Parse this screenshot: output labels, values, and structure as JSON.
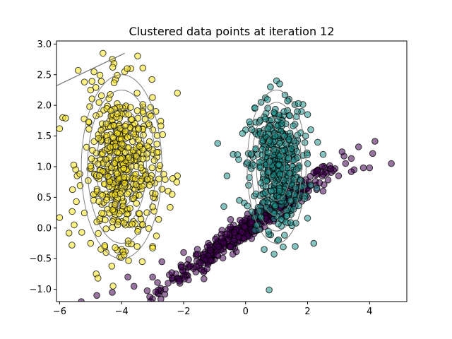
{
  "chart_data": {
    "type": "scatter",
    "title": "Clustered data points at iteration 12",
    "xlabel": "",
    "ylabel": "",
    "xlim": [
      -6.1,
      5.2
    ],
    "ylim": [
      -1.2,
      3.05
    ],
    "xticks": [
      -6,
      -4,
      -2,
      0,
      2,
      4
    ],
    "yticks": [
      -1.0,
      -0.5,
      0.0,
      0.5,
      1.0,
      1.5,
      2.0,
      2.5,
      3.0
    ],
    "grid": false,
    "legend": "none",
    "marker_edge_color": "#000000",
    "series": [
      {
        "color": "#440154",
        "center": [
          0.0,
          0.0
        ],
        "count": 520,
        "spread": "elongated along slope 0.35, x from about -5.3 to 4.7",
        "points": [
          [
            -5.3,
            -1.2
          ],
          [
            -4.8,
            -1.1
          ],
          [
            -4.3,
            -1.05
          ],
          [
            -3.8,
            -0.8
          ],
          [
            -3.6,
            -0.95
          ],
          [
            -3.0,
            -0.8
          ],
          [
            -2.7,
            -0.55
          ],
          [
            -2.5,
            -0.9
          ],
          [
            -2.0,
            -0.4
          ],
          [
            -1.6,
            -0.45
          ],
          [
            -1.2,
            -0.25
          ],
          [
            -0.8,
            -0.3
          ],
          [
            -0.4,
            -0.05
          ],
          [
            0.0,
            0.0
          ],
          [
            0.3,
            0.05
          ],
          [
            0.7,
            0.2
          ],
          [
            1.2,
            0.35
          ],
          [
            1.6,
            0.45
          ],
          [
            2.0,
            0.5
          ],
          [
            2.5,
            0.6
          ],
          [
            3.0,
            0.85
          ],
          [
            3.5,
            0.95
          ],
          [
            3.8,
            0.98
          ],
          [
            4.0,
            0.98
          ],
          [
            4.7,
            1.05
          ]
        ]
      },
      {
        "color": "#21918c",
        "center": [
          1.0,
          1.0
        ],
        "count": 520,
        "spread": "compact vertical ellipse, x from about -0.9 to 2.5, y from about -0.4 to 2.4",
        "points": [
          [
            -0.9,
            1.38
          ],
          [
            -0.7,
            0.35
          ],
          [
            -0.6,
            0.85
          ],
          [
            -0.4,
            1.2
          ],
          [
            -0.2,
            0.45
          ],
          [
            0.0,
            1.6
          ],
          [
            0.3,
            1.95
          ],
          [
            0.5,
            2.05
          ],
          [
            0.6,
            -0.35
          ],
          [
            0.8,
            2.3
          ],
          [
            1.0,
            2.4
          ],
          [
            1.1,
            2.35
          ],
          [
            1.4,
            2.1
          ],
          [
            1.6,
            -0.3
          ],
          [
            1.8,
            1.9
          ],
          [
            2.0,
            1.85
          ],
          [
            2.1,
            0.7
          ],
          [
            2.2,
            -0.25
          ],
          [
            2.5,
            1.2
          ],
          [
            2.3,
            0.65
          ]
        ]
      },
      {
        "color": "#fde725",
        "center": [
          -4.0,
          1.0
        ],
        "count": 520,
        "spread": "tall vertical ellipse, x from about -6.0 to -2.0, y from about -0.4 to 2.85",
        "points": [
          [
            -6.0,
            0.17
          ],
          [
            -6.0,
            1.62
          ],
          [
            -5.9,
            1.8
          ],
          [
            -5.6,
            -0.28
          ],
          [
            -5.4,
            2.57
          ],
          [
            -5.2,
            2.38
          ],
          [
            -5.0,
            2.25
          ],
          [
            -4.6,
            2.85
          ],
          [
            -4.3,
            2.75
          ],
          [
            -4.2,
            2.42
          ],
          [
            -3.9,
            2.55
          ],
          [
            -3.7,
            2.6
          ],
          [
            -3.5,
            2.2
          ],
          [
            -3.1,
            1.85
          ],
          [
            -2.8,
            0.8
          ],
          [
            -2.2,
            2.2
          ],
          [
            -2.2,
            0.85
          ],
          [
            -2.5,
            0.6
          ],
          [
            -3.0,
            -0.3
          ],
          [
            -3.5,
            -0.3
          ],
          [
            -4.0,
            -0.35
          ],
          [
            -4.5,
            -0.4
          ],
          [
            -5.0,
            -0.25
          ]
        ]
      }
    ],
    "ellipses": [
      {
        "center": [
          -4.0,
          1.0
        ],
        "rx_levels": [
          0.3,
          0.55,
          0.8,
          1.1,
          1.3
        ],
        "ry_levels": [
          0.35,
          0.65,
          0.95,
          1.25,
          1.5
        ]
      },
      {
        "center": [
          1.0,
          1.0
        ],
        "rx_levels": [
          0.25,
          0.45,
          0.65,
          0.8,
          0.95
        ],
        "ry_levels": [
          0.3,
          0.55,
          0.8,
          1.05,
          1.25
        ]
      }
    ],
    "extra_line": {
      "from": [
        -6.1,
        2.32
      ],
      "to": [
        -3.9,
        2.85
      ],
      "color": "#808080"
    }
  }
}
